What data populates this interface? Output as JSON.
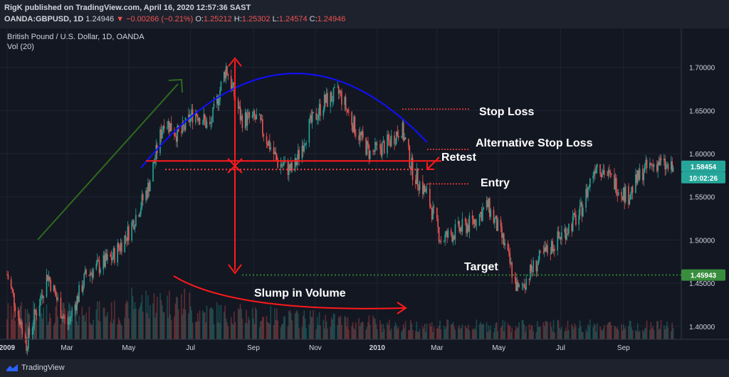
{
  "header": {
    "publisher_line": "RigK published on TradingView.com, April 16, 2020 12:57:36 SAST",
    "symbol_short": "OANDA:GBPUSD, 1D",
    "last": "1.24946",
    "change": "−0.00266 (−0.21%)",
    "o_label": "O:",
    "o_val": "1.25212",
    "h_label": "H:",
    "h_val": "1.25302",
    "l_label": "L:",
    "l_val": "1.24574",
    "c_label": "C:",
    "c_val": "1.24946",
    "change_marker_icon": "triangle-down-icon"
  },
  "legend": {
    "symbol_title": "British Pound / U.S. Dollar, 1D, OANDA",
    "volume_label": "Vol (20)"
  },
  "footer": {
    "brand": "TradingView",
    "logo_icon": "tradingview-logo-icon"
  },
  "colors": {
    "background": "#131722",
    "up": "#26a69a",
    "down": "#ef5350",
    "annotation_red": "#ff1a1a",
    "neckline_dots": "#ff3b3b",
    "target_dots": "#2e7d32",
    "arc": "#1010ff",
    "trend_arrow": "#2e6b1f",
    "price_badge": "#26a69a",
    "target_badge": "#388e3c"
  },
  "chart_data": {
    "type": "candlestick",
    "title": "British Pound / U.S. Dollar, 1D, OANDA",
    "y_axis": {
      "ticks": [
        "1.70000",
        "1.65000",
        "1.60000",
        "1.55000",
        "1.50000",
        "1.45000",
        "1.40000"
      ],
      "ylim": [
        1.385,
        1.745
      ]
    },
    "x_axis": {
      "ticks": [
        "2009",
        "Mar",
        "May",
        "Jul",
        "Sep",
        "Nov",
        "2010",
        "Mar",
        "May",
        "Jul",
        "Sep"
      ]
    },
    "price_labels": {
      "last": "1.58454",
      "countdown": "10:02:26",
      "target": "1.45943"
    },
    "path_points": [
      [
        "2009-01-01",
        1.46
      ],
      [
        "2009-01-20",
        1.38
      ],
      [
        "2009-02-10",
        1.46
      ],
      [
        "2009-03-01",
        1.4
      ],
      [
        "2009-03-20",
        1.46
      ],
      [
        "2009-04-15",
        1.48
      ],
      [
        "2009-05-01",
        1.51
      ],
      [
        "2009-05-20",
        1.56
      ],
      [
        "2009-06-05",
        1.64
      ],
      [
        "2009-06-20",
        1.62
      ],
      [
        "2009-07-05",
        1.65
      ],
      [
        "2009-07-20",
        1.63
      ],
      [
        "2009-08-05",
        1.7
      ],
      [
        "2009-08-20",
        1.64
      ],
      [
        "2009-09-05",
        1.64
      ],
      [
        "2009-09-25",
        1.59
      ],
      [
        "2009-10-10",
        1.58
      ],
      [
        "2009-10-25",
        1.63
      ],
      [
        "2009-11-10",
        1.66
      ],
      [
        "2009-11-25",
        1.67
      ],
      [
        "2009-12-10",
        1.63
      ],
      [
        "2009-12-25",
        1.6
      ],
      [
        "2010-01-10",
        1.61
      ],
      [
        "2010-01-25",
        1.63
      ],
      [
        "2010-02-05",
        1.58
      ],
      [
        "2010-02-20",
        1.55
      ],
      [
        "2010-03-05",
        1.5
      ],
      [
        "2010-03-20",
        1.51
      ],
      [
        "2010-04-05",
        1.52
      ],
      [
        "2010-04-20",
        1.54
      ],
      [
        "2010-05-05",
        1.5
      ],
      [
        "2010-05-20",
        1.44
      ],
      [
        "2010-06-05",
        1.47
      ],
      [
        "2010-06-20",
        1.49
      ],
      [
        "2010-07-05",
        1.51
      ],
      [
        "2010-07-20",
        1.53
      ],
      [
        "2010-08-05",
        1.59
      ],
      [
        "2010-08-20",
        1.57
      ],
      [
        "2010-09-05",
        1.55
      ],
      [
        "2010-09-20",
        1.58
      ],
      [
        "2010-10-05",
        1.59
      ],
      [
        "2010-10-20",
        1.58
      ]
    ],
    "volume": "declining from May 2009 into early 2010, then flat",
    "annotations": [
      {
        "text": "Stop Loss",
        "price": 1.65
      },
      {
        "text": "Alternative Stop Loss",
        "price": 1.6
      },
      {
        "text": "Retest",
        "price": 1.58
      },
      {
        "text": "Entry",
        "price": 1.57
      },
      {
        "text": "Target",
        "price": 1.4594
      },
      {
        "text": "Slump in Volume"
      }
    ],
    "neckline": 1.58,
    "head_top": 1.7,
    "grid": true
  }
}
